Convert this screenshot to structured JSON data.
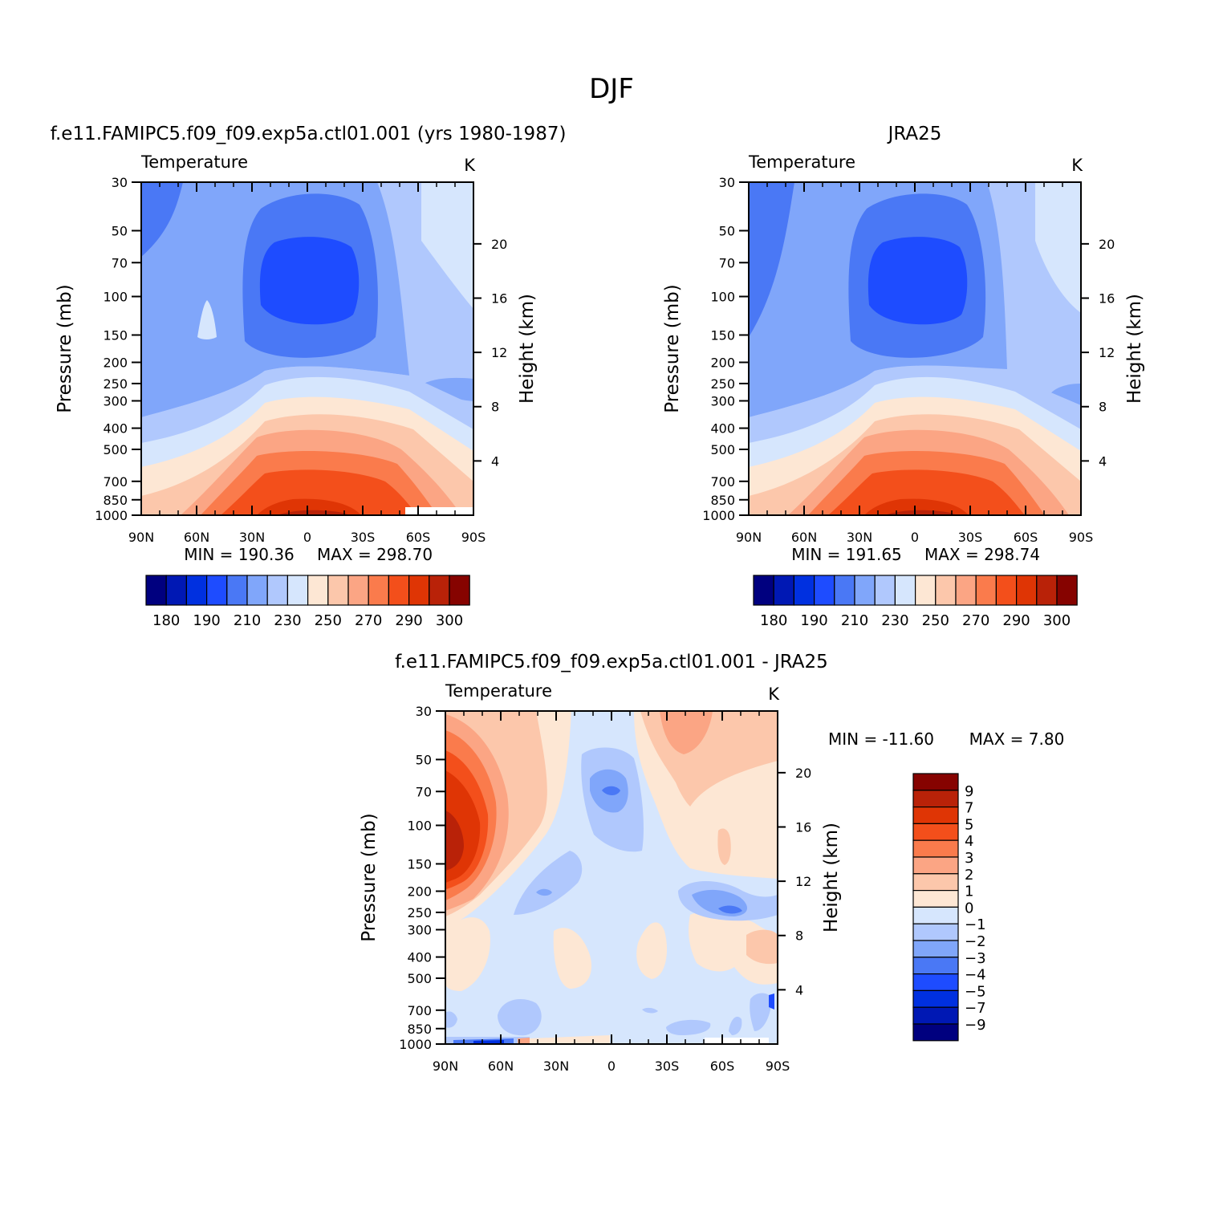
{
  "figure_title": "DJF",
  "chart_data": [
    {
      "type": "heatmap",
      "panel": "model",
      "title": "f.e11.FAMIPC5.f09_f09.exp5a.ctl01.001 (yrs 1980-1987)",
      "variable": "Temperature",
      "units": "K",
      "xlabel": "",
      "ylabel": "Pressure (mb)",
      "y2label": "Height (km)",
      "x_ticks": [
        "90N",
        "60N",
        "30N",
        "0",
        "30S",
        "60S",
        "90S"
      ],
      "xlim": [
        90,
        -90
      ],
      "y_ticks": [
        30,
        50,
        70,
        100,
        150,
        200,
        250,
        300,
        400,
        500,
        700,
        850,
        1000
      ],
      "ylim": [
        30,
        1000
      ],
      "y_scale": "log",
      "y2_ticks": [
        20,
        16,
        12,
        8,
        4
      ],
      "min_label": "MIN = 190.36",
      "max_label": "MAX = 298.70",
      "min": 190.36,
      "max": 298.7,
      "colorbar_orientation": "horizontal",
      "colorbar_labels": [
        "180",
        "190",
        "210",
        "230",
        "250",
        "270",
        "290",
        "300"
      ],
      "levels": [
        170,
        180,
        190,
        200,
        210,
        220,
        230,
        240,
        250,
        260,
        270,
        280,
        290,
        300
      ]
    },
    {
      "type": "heatmap",
      "panel": "obs",
      "title": "JRA25",
      "variable": "Temperature",
      "units": "K",
      "xlabel": "",
      "ylabel": "Pressure (mb)",
      "y2label": "Height (km)",
      "x_ticks": [
        "90N",
        "60N",
        "30N",
        "0",
        "30S",
        "60S",
        "90S"
      ],
      "xlim": [
        90,
        -90
      ],
      "y_ticks": [
        30,
        50,
        70,
        100,
        150,
        200,
        250,
        300,
        400,
        500,
        700,
        850,
        1000
      ],
      "ylim": [
        30,
        1000
      ],
      "y_scale": "log",
      "y2_ticks": [
        20,
        16,
        12,
        8,
        4
      ],
      "min_label": "MIN = 191.65",
      "max_label": "MAX = 298.74",
      "min": 191.65,
      "max": 298.74,
      "colorbar_orientation": "horizontal",
      "colorbar_labels": [
        "180",
        "190",
        "210",
        "230",
        "250",
        "270",
        "290",
        "300"
      ],
      "levels": [
        170,
        180,
        190,
        200,
        210,
        220,
        230,
        240,
        250,
        260,
        270,
        280,
        290,
        300
      ]
    },
    {
      "type": "heatmap",
      "panel": "diff",
      "title": "f.e11.FAMIPC5.f09_f09.exp5a.ctl01.001 - JRA25",
      "variable": "Temperature",
      "units": "K",
      "xlabel": "",
      "ylabel": "Pressure (mb)",
      "y2label": "Height (km)",
      "x_ticks": [
        "90N",
        "60N",
        "30N",
        "0",
        "30S",
        "60S",
        "90S"
      ],
      "xlim": [
        90,
        -90
      ],
      "y_ticks": [
        30,
        50,
        70,
        100,
        150,
        200,
        250,
        300,
        400,
        500,
        700,
        850,
        1000
      ],
      "ylim": [
        30,
        1000
      ],
      "y_scale": "log",
      "y2_ticks": [
        20,
        16,
        12,
        8,
        4
      ],
      "min_label": "MIN = -11.60",
      "max_label": "MAX = 7.80",
      "min": -11.6,
      "max": 7.8,
      "colorbar_orientation": "vertical",
      "colorbar_labels": [
        "9",
        "7",
        "5",
        "4",
        "3",
        "2",
        "1",
        "0",
        "-1",
        "-2",
        "-3",
        "-4",
        "-5",
        "-7",
        "-9"
      ],
      "levels": [
        -9,
        -7,
        -5,
        -4,
        -3,
        -2,
        -1,
        0,
        1,
        2,
        3,
        4,
        5,
        7,
        9
      ]
    }
  ],
  "palettes": {
    "temperature": [
      "#00007f",
      "#0018b4",
      "#0030e0",
      "#1e4cff",
      "#4a78f5",
      "#80a6fa",
      "#b0c8fd",
      "#d6e6fd",
      "#fde7d4",
      "#fcc7ab",
      "#fba584",
      "#fa7b4c",
      "#f34f1b",
      "#df3505",
      "#b92208",
      "#860300"
    ],
    "difference": [
      "#00007f",
      "#0018b4",
      "#0030e0",
      "#1e4cff",
      "#4a78f5",
      "#80a6fa",
      "#b0c8fd",
      "#d6e6fd",
      "#fde7d4",
      "#fcc7ab",
      "#fba584",
      "#fa7b4c",
      "#f34f1b",
      "#df3505",
      "#b92208",
      "#860300"
    ]
  }
}
